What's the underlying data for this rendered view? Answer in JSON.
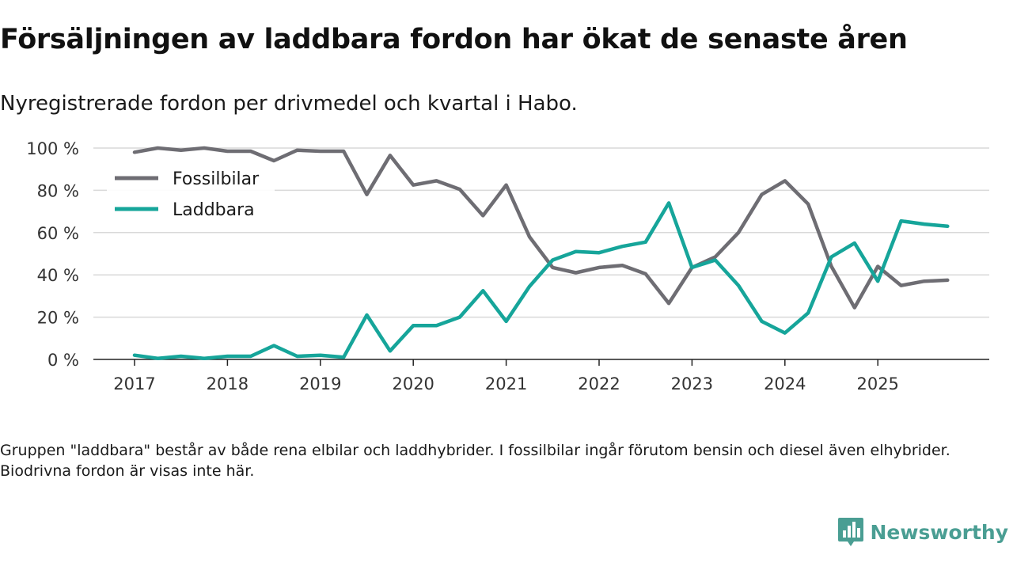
{
  "title": "Försäljningen av laddbara fordon har ökat de senaste åren",
  "subtitle": "Nyregistrerade fordon per drivmedel och kvartal i Habo.",
  "footnote": "Gruppen \"laddbara\" består av både rena elbilar och laddhybrider. I fossilbilar ingår förutom bensin och diesel även elhybrider. Biodrivna fordon är visas inte här.",
  "brand": {
    "name": "Newsworthy",
    "icon": "newsworthy-logo-icon"
  },
  "colors": {
    "fossil": "#6e6d73",
    "laddbara": "#16a59a",
    "grid": "#d9d9d9",
    "axis": "#222222"
  },
  "chart_data": {
    "type": "line",
    "title": "",
    "xlabel": "",
    "ylabel": "",
    "x": [
      "2017 Q1",
      "2017 Q2",
      "2017 Q3",
      "2017 Q4",
      "2018 Q1",
      "2018 Q2",
      "2018 Q3",
      "2018 Q4",
      "2019 Q1",
      "2019 Q2",
      "2019 Q3",
      "2019 Q4",
      "2020 Q1",
      "2020 Q2",
      "2020 Q3",
      "2020 Q4",
      "2021 Q1",
      "2021 Q2",
      "2021 Q3",
      "2021 Q4",
      "2022 Q1",
      "2022 Q2",
      "2022 Q3",
      "2022 Q4",
      "2023 Q1",
      "2023 Q2",
      "2023 Q3",
      "2023 Q4",
      "2024 Q1",
      "2024 Q2",
      "2024 Q3",
      "2024 Q4",
      "2025 Q1",
      "2025 Q2",
      "2025 Q3",
      "2025 Q4"
    ],
    "x_ticks": [
      "2017",
      "2018",
      "2019",
      "2020",
      "2021",
      "2022",
      "2023",
      "2024",
      "2025"
    ],
    "y_ticks": [
      0,
      20,
      40,
      60,
      80,
      100
    ],
    "y_tick_labels": [
      "0 %",
      "20 %",
      "40 %",
      "60 %",
      "80 %",
      "100 %"
    ],
    "ylim": [
      0,
      100
    ],
    "grid": true,
    "legend_position": "top-left",
    "series": [
      {
        "name": "Fossilbilar",
        "color": "#6e6d73",
        "values": [
          98,
          100,
          99,
          100,
          98.5,
          98.5,
          94,
          99,
          98.5,
          98.5,
          78,
          96.5,
          82.5,
          84.5,
          80.5,
          68,
          82.5,
          58,
          43.5,
          41,
          43.5,
          44.5,
          40.5,
          26.5,
          43.5,
          48.5,
          60,
          78,
          84.5,
          73.5,
          44,
          24.5,
          44,
          35,
          37,
          37.5
        ]
      },
      {
        "name": "Laddbara",
        "color": "#16a59a",
        "values": [
          2,
          0.5,
          1.5,
          0.5,
          1.5,
          1.5,
          6.5,
          1.5,
          2,
          1,
          21,
          4,
          16,
          16,
          20,
          32.5,
          18,
          34.5,
          47,
          51,
          50.5,
          53.5,
          55.5,
          74,
          43.5,
          47,
          35,
          18,
          12.5,
          22,
          48.5,
          55,
          37,
          65.5,
          64,
          63
        ]
      }
    ]
  }
}
